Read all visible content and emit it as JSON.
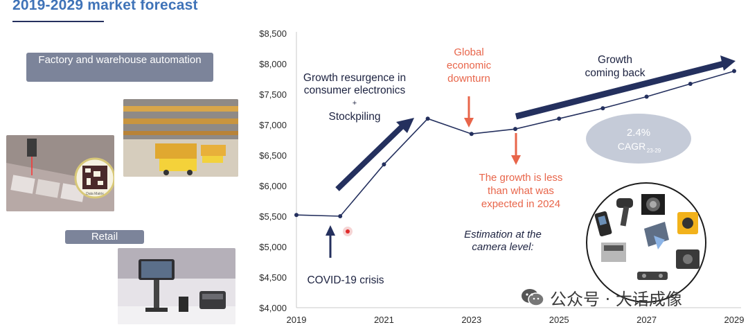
{
  "slide": {
    "title": "2019-2029 market forecast",
    "factory_label": "Factory and warehouse automation",
    "retail_label": "Retail",
    "code_caption": "Data Matrix"
  },
  "chart_data": {
    "type": "line",
    "x": [
      2019,
      2020,
      2021,
      2022,
      2023,
      2024,
      2025,
      2026,
      2027,
      2028,
      2029
    ],
    "values": [
      5520,
      5500,
      6350,
      7100,
      6850,
      6930,
      7100,
      7270,
      7460,
      7670,
      7880
    ],
    "xticks": [
      "2019",
      "2021",
      "2023",
      "2025",
      "2027",
      "2029"
    ],
    "yticks": [
      "$4,000",
      "$4,500",
      "$5,000",
      "$5,500",
      "$6,000",
      "$6,500",
      "$7,000",
      "$7,500",
      "$8,000",
      "$8,500"
    ],
    "ylim": [
      4000,
      8500
    ],
    "xlim": [
      2019,
      2029
    ],
    "grid": false,
    "annotations": {
      "covid": "COVID-19 crisis",
      "resurgence_1": "Growth resurgence in",
      "resurgence_2": "consumer electronics",
      "resurgence_plus": "+",
      "resurgence_3": "Stockpiling",
      "downturn_1": "Global",
      "downturn_2": "economic",
      "downturn_3": "downturn",
      "less_1": "The growth is less",
      "less_2": "than what was",
      "less_3": "expected in 2024",
      "comeback_1": "Growth",
      "comeback_2": "coming back",
      "cagr_value": "2.4%",
      "cagr_label": "CAGR",
      "cagr_sub": "23-29",
      "estimation_1": "Estimation at the",
      "estimation_2": "camera level:"
    },
    "colors": {
      "line": "#24305e",
      "arrow": "#24305e",
      "red": "#e8654a",
      "cagr_bg": "#c5cbd8"
    }
  },
  "watermark": {
    "text": "公众号 · 大话成像",
    "icon": "wechat-icon"
  }
}
